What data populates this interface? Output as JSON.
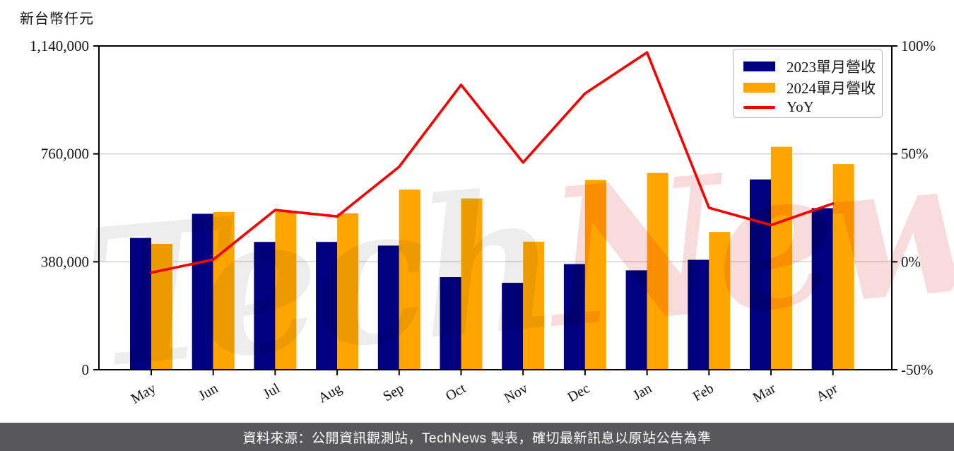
{
  "unit_label": "新台幣仟元",
  "legend": {
    "items": [
      {
        "label": "2023單月營收",
        "color": "#000080",
        "swatch": "bar"
      },
      {
        "label": "2024單月營收",
        "color": "#FFA500",
        "swatch": "bar"
      },
      {
        "label": "YoY",
        "color": "#F70000",
        "swatch": "line"
      }
    ]
  },
  "watermark": {
    "part1": "Tech",
    "part2": "News",
    "part1_color": "#ededed",
    "part2_color": "#f8dcdc"
  },
  "footer": {
    "text": "資料來源：公開資訊觀測站，TechNews 製表，確切最新訊息以原站公告為準"
  },
  "chart_data": {
    "type": "bar+line",
    "categories": [
      "May",
      "Jun",
      "Jul",
      "Aug",
      "Sep",
      "Oct",
      "Nov",
      "Dec",
      "Jan",
      "Feb",
      "Mar",
      "Apr"
    ],
    "series": [
      {
        "name": "2023單月營收",
        "type": "bar",
        "color": "#000080",
        "values": [
          464000,
          549000,
          450000,
          450000,
          437000,
          326000,
          306000,
          372000,
          350000,
          387000,
          670000,
          569000
        ]
      },
      {
        "name": "2024單月營收",
        "type": "bar",
        "color": "#FFA500",
        "values": [
          443000,
          555000,
          560000,
          551000,
          634000,
          603000,
          451000,
          668000,
          693000,
          485000,
          785000,
          724000
        ]
      },
      {
        "name": "YoY",
        "type": "line",
        "color": "#F70000",
        "axis": "right",
        "unit": "%",
        "values": [
          -5,
          1,
          24,
          21,
          44,
          82,
          46,
          78,
          97,
          25,
          17,
          27
        ]
      }
    ],
    "left_axis": {
      "label": "新台幣仟元",
      "min": 0,
      "max": 1140000,
      "tick_values": [
        0,
        380000,
        760000,
        1140000
      ],
      "tick_labels": [
        "0",
        "380,000",
        "760,000",
        "1,140,000"
      ]
    },
    "right_axis": {
      "min": -50,
      "max": 100,
      "tick_values": [
        -50,
        0,
        50,
        100
      ],
      "tick_labels": [
        "-50%",
        "0%",
        "50%",
        "100%"
      ]
    },
    "grid": "horizontal",
    "legend_position": "upper right"
  }
}
